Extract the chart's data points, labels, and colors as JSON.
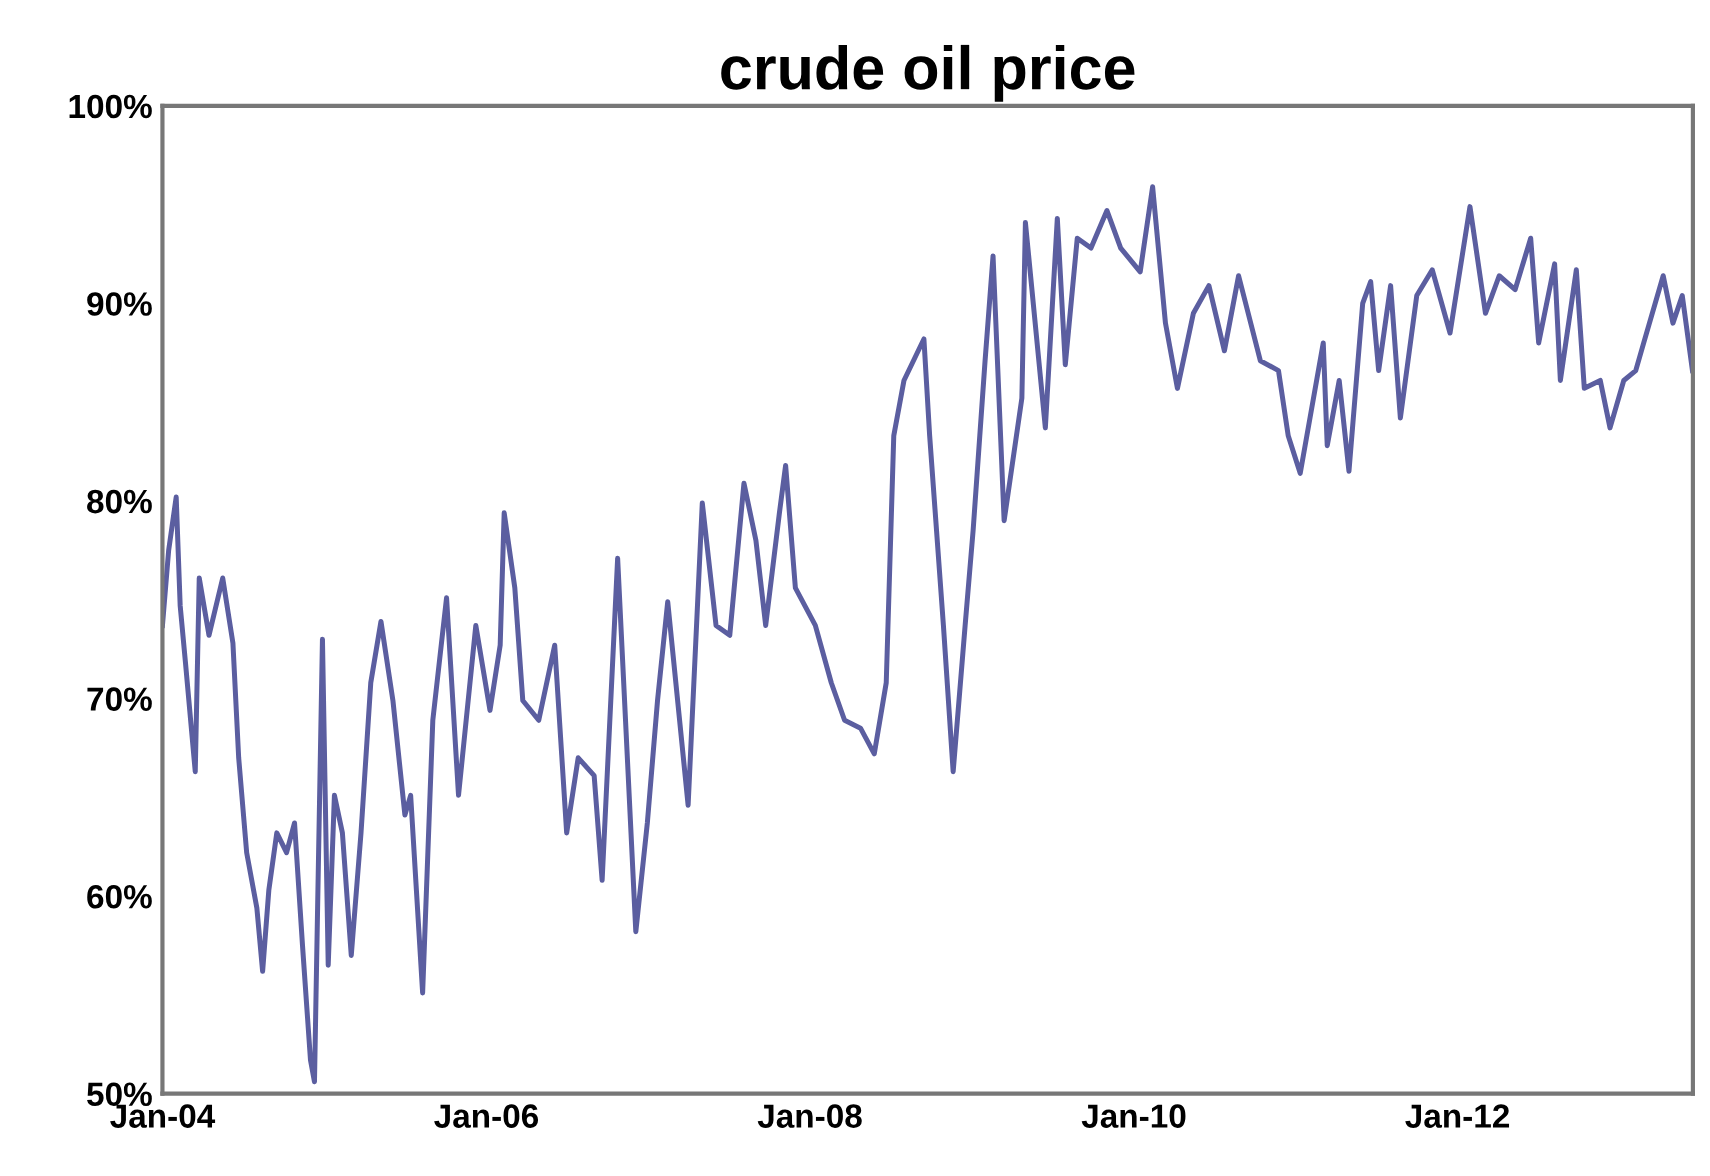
{
  "chart_data": {
    "type": "line",
    "title": "crude oil price",
    "x": [
      "2004-01-01",
      "2004-01-15",
      "2004-02-01",
      "2004-02-10",
      "2004-02-22",
      "2004-03-15",
      "2004-03-24",
      "2004-04-15",
      "2004-05-16",
      "2004-06-08",
      "2004-06-21",
      "2004-07-09",
      "2004-08-01",
      "2004-08-14",
      "2004-08-28",
      "2004-09-15",
      "2004-10-07",
      "2004-10-25",
      "2004-11-12",
      "2004-11-30",
      "2004-12-09",
      "2004-12-27",
      "2005-01-09",
      "2005-01-23",
      "2005-02-10",
      "2005-03-02",
      "2005-03-24",
      "2005-04-15",
      "2005-05-08",
      "2005-06-04",
      "2005-07-01",
      "2005-07-14",
      "2005-08-10",
      "2005-09-02",
      "2005-10-03",
      "2005-10-30",
      "2005-12-08",
      "2006-01-09",
      "2006-02-01",
      "2006-02-10",
      "2006-03-06",
      "2006-03-24",
      "2006-04-29",
      "2006-06-04",
      "2006-07-01",
      "2006-07-27",
      "2006-09-01",
      "2006-09-19",
      "2006-10-24",
      "2006-12-04",
      "2006-12-30",
      "2007-01-22",
      "2007-02-14",
      "2007-04-01",
      "2007-05-03",
      "2007-06-03",
      "2007-07-04",
      "2007-08-05",
      "2007-09-01",
      "2007-09-23",
      "2007-10-24",
      "2007-11-07",
      "2007-11-29",
      "2008-01-13",
      "2008-02-18",
      "2008-03-19",
      "2008-04-24",
      "2008-05-25",
      "2008-06-21",
      "2008-07-08",
      "2008-07-31",
      "2008-09-14",
      "2008-09-27",
      "2008-10-28",
      "2008-11-19",
      "2008-12-16",
      "2009-01-03",
      "2009-01-30",
      "2009-02-17",
      "2009-03-14",
      "2009-04-23",
      "2009-05-01",
      "2009-06-15",
      "2009-07-12",
      "2009-07-30",
      "2009-08-26",
      "2009-09-26",
      "2009-11-01",
      "2009-12-02",
      "2010-01-15",
      "2010-02-12",
      "2010-03-13",
      "2010-04-09",
      "2010-05-15",
      "2010-06-19",
      "2010-07-24",
      "2010-08-25",
      "2010-10-13",
      "2010-11-23",
      "2010-12-15",
      "2011-01-11",
      "2011-03-04",
      "2011-03-13",
      "2011-04-09",
      "2011-05-01",
      "2011-06-01",
      "2011-06-19",
      "2011-07-07",
      "2011-08-03",
      "2011-08-25",
      "2011-10-01",
      "2011-11-05",
      "2011-12-15",
      "2012-01-29",
      "2012-03-04",
      "2012-04-04",
      "2012-05-10",
      "2012-06-14",
      "2012-07-02",
      "2012-08-07",
      "2012-08-20",
      "2012-09-25",
      "2012-10-13",
      "2012-11-18",
      "2012-12-10",
      "2013-01-10",
      "2013-02-06",
      "2013-02-24",
      "2013-04-09",
      "2013-05-01",
      "2013-05-22",
      "2013-06-14"
    ],
    "series": [
      {
        "color": "#5b5ea0",
        "values": [
          73.7,
          77.5,
          80.2,
          74.7,
          71.8,
          66.3,
          76.1,
          73.2,
          76.1,
          72.8,
          67.0,
          62.2,
          59.4,
          56.2,
          60.3,
          63.2,
          62.2,
          63.7,
          57.5,
          51.7,
          50.6,
          73.0,
          56.5,
          65.1,
          63.2,
          57.0,
          63.2,
          70.8,
          73.9,
          69.9,
          64.1,
          65.1,
          55.1,
          68.9,
          75.1,
          65.1,
          73.7,
          69.4,
          72.7,
          79.4,
          75.6,
          69.9,
          68.9,
          72.7,
          63.2,
          67.0,
          66.1,
          60.8,
          77.1,
          58.2,
          63.7,
          69.9,
          74.9,
          64.6,
          79.9,
          73.7,
          73.2,
          80.9,
          78.0,
          73.7,
          79.4,
          81.8,
          75.6,
          73.7,
          70.8,
          68.9,
          68.5,
          67.2,
          70.8,
          83.3,
          86.1,
          88.2,
          83.3,
          73.7,
          66.3,
          73.7,
          78.5,
          87.1,
          92.4,
          79.0,
          85.2,
          94.1,
          83.7,
          94.3,
          86.9,
          93.3,
          92.8,
          94.7,
          92.8,
          91.6,
          95.9,
          89.0,
          85.7,
          89.5,
          90.9,
          87.6,
          91.4,
          87.1,
          86.6,
          83.3,
          81.4,
          88.0,
          82.8,
          86.1,
          81.5,
          90.0,
          91.1,
          86.6,
          90.9,
          84.2,
          90.4,
          91.7,
          88.5,
          94.9,
          89.5,
          91.4,
          90.7,
          93.3,
          88.0,
          92.0,
          86.1,
          91.7,
          85.7,
          86.1,
          83.7,
          86.1,
          86.6,
          88.0,
          91.4,
          89.0,
          90.4,
          86.6
        ]
      }
    ],
    "xlim": [
      "2004-01-01",
      "2013-06-15"
    ],
    "xticks": [
      {
        "value": "2004-01-01",
        "label": "Jan-04"
      },
      {
        "value": "2006-01-01",
        "label": "Jan-06"
      },
      {
        "value": "2008-01-01",
        "label": "Jan-08"
      },
      {
        "value": "2010-01-01",
        "label": "Jan-10"
      },
      {
        "value": "2012-01-01",
        "label": "Jan-12"
      }
    ],
    "ylim": [
      50,
      100
    ],
    "yticks": [
      {
        "value": 50,
        "label": "50%"
      },
      {
        "value": 60,
        "label": "60%"
      },
      {
        "value": 70,
        "label": "70%"
      },
      {
        "value": 80,
        "label": "80%"
      },
      {
        "value": 90,
        "label": "90%"
      },
      {
        "value": 100,
        "label": "100%"
      }
    ],
    "grid": false,
    "legend": false,
    "marker": "none",
    "line_style": "solid"
  }
}
